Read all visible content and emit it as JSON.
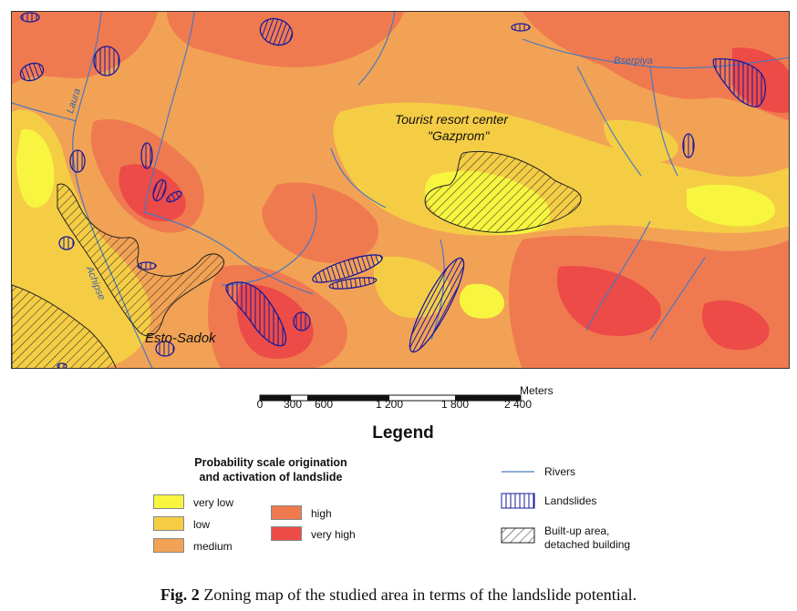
{
  "map": {
    "labels": {
      "resort_line1": "Tourist resort center",
      "resort_line2": "\"Gazprom\"",
      "settlement": "Esto-Sadok"
    },
    "rivers": {
      "laura": "Laura",
      "achipse": "Achipse",
      "bserpiya": "Bserpiya"
    }
  },
  "scale": {
    "ticks": [
      "0",
      "300",
      "600",
      "1 200",
      "1 800",
      "2 400"
    ],
    "tick_values_m": [
      0,
      300,
      600,
      1200,
      1800,
      2400
    ],
    "unit": "Meters"
  },
  "legend": {
    "title": "Legend",
    "probability_title_line1": "Probability scale origination",
    "probability_title_line2": "and activation of landslide",
    "classes": [
      {
        "label": "very low",
        "color": "#f7f53f"
      },
      {
        "label": "low",
        "color": "#f5cd45"
      },
      {
        "label": "medium",
        "color": "#f2a254"
      },
      {
        "label": "high",
        "color": "#f07a50"
      },
      {
        "label": "very high",
        "color": "#ed4b47"
      }
    ],
    "symbols": {
      "rivers": "Rivers",
      "landslides": "Landslides",
      "builtup_line1": "Built-up area,",
      "builtup_line2": "detached building"
    },
    "colors": {
      "river": "#4a78c0",
      "landslide": "#1a1a9a",
      "builtup": "#222222"
    }
  },
  "caption": {
    "prefix": "Fig. 2",
    "text": " Zoning map of the studied area in terms of the landslide potential."
  }
}
